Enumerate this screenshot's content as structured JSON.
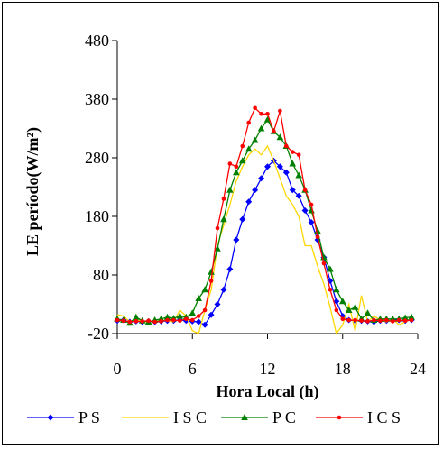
{
  "chart_data": {
    "type": "line",
    "xlabel": "Hora Local (h)",
    "ylabel": "LE período(W/m²)",
    "xlim": [
      0,
      24
    ],
    "ylim": [
      -20,
      480
    ],
    "xticks": [
      0,
      6,
      12,
      18,
      24
    ],
    "yticks": [
      -20,
      80,
      180,
      280,
      380,
      480
    ],
    "xtick_labels": [
      "0",
      "6",
      "12",
      "18",
      "24"
    ],
    "ytick_labels": [
      "-20",
      "80",
      "180",
      "280",
      "380",
      "480"
    ],
    "grid": false,
    "legend_position": "bottom",
    "series": [
      {
        "name": "P S",
        "color": "#0000ff",
        "marker": "diamond",
        "x": [
          0,
          0.5,
          1,
          1.5,
          2,
          2.5,
          3,
          3.5,
          4,
          4.5,
          5,
          5.5,
          6,
          6.5,
          7,
          7.5,
          8,
          8.5,
          9,
          9.5,
          10,
          10.5,
          11,
          11.5,
          12,
          12.5,
          13,
          13.5,
          14,
          14.5,
          15,
          15.5,
          16,
          16.5,
          17,
          17.5,
          18,
          18.5,
          19,
          19.5,
          20,
          20.5,
          21,
          21.5,
          22,
          22.5,
          23,
          23.5
        ],
        "values": [
          2,
          3,
          0,
          1,
          0,
          1,
          0,
          1,
          2,
          2,
          3,
          2,
          1,
          0,
          -5,
          12,
          30,
          55,
          90,
          140,
          175,
          205,
          225,
          245,
          265,
          275,
          265,
          255,
          225,
          215,
          190,
          170,
          140,
          110,
          70,
          35,
          10,
          3,
          2,
          2,
          1,
          0,
          2,
          2,
          3,
          3,
          2,
          3
        ]
      },
      {
        "name": "I S C",
        "color": "#ffd700",
        "marker": "none",
        "x": [
          0,
          0.5,
          1,
          1.5,
          2,
          2.5,
          3,
          3.5,
          4,
          4.5,
          5,
          5.5,
          6,
          6.5,
          7,
          7.5,
          8,
          8.5,
          9,
          9.5,
          10,
          10.5,
          11,
          11.5,
          12,
          12.5,
          13,
          13.5,
          14,
          14.5,
          15,
          15.5,
          16,
          16.5,
          17,
          17.5,
          18,
          18.5,
          19,
          19.5,
          20,
          20.5,
          21,
          21.5,
          22,
          22.5,
          23,
          23.5
        ],
        "values": [
          12,
          10,
          0,
          5,
          0,
          0,
          2,
          3,
          2,
          0,
          20,
          10,
          -15,
          -20,
          20,
          55,
          130,
          165,
          200,
          240,
          265,
          285,
          295,
          285,
          300,
          275,
          245,
          215,
          200,
          180,
          130,
          130,
          95,
          65,
          25,
          -20,
          -5,
          30,
          -15,
          45,
          0,
          10,
          3,
          0,
          5,
          -5,
          0,
          5
        ]
      },
      {
        "name": "P C",
        "color": "#008000",
        "marker": "triangle",
        "x": [
          0,
          0.5,
          1,
          1.5,
          2,
          2.5,
          3,
          3.5,
          4,
          4.5,
          5,
          5.5,
          6,
          6.5,
          7,
          7.5,
          8,
          8.5,
          9,
          9.5,
          10,
          10.5,
          11,
          11.5,
          12,
          12.5,
          13,
          13.5,
          14,
          14.5,
          15,
          15.5,
          16,
          16.5,
          17,
          17.5,
          18,
          18.5,
          19,
          19.5,
          20,
          20.5,
          21,
          21.5,
          22,
          22.5,
          23,
          23.5
        ],
        "values": [
          5,
          3,
          -2,
          8,
          2,
          0,
          3,
          5,
          8,
          6,
          10,
          8,
          15,
          40,
          55,
          85,
          125,
          175,
          225,
          255,
          275,
          295,
          310,
          330,
          345,
          325,
          315,
          300,
          270,
          250,
          225,
          190,
          155,
          110,
          90,
          55,
          35,
          20,
          25,
          5,
          15,
          3,
          5,
          5,
          5,
          5,
          7,
          8
        ]
      },
      {
        "name": "I C S",
        "color": "#ff0000",
        "marker": "circle",
        "x": [
          0,
          0.5,
          1,
          1.5,
          2,
          2.5,
          3,
          3.5,
          4,
          4.5,
          5,
          5.5,
          6,
          6.5,
          7,
          7.5,
          8,
          8.5,
          9,
          9.5,
          10,
          10.5,
          11,
          11.5,
          12,
          12.5,
          13,
          13.5,
          14,
          14.5,
          15,
          15.5,
          16,
          16.5,
          17,
          17.5,
          18,
          18.5,
          19,
          19.5,
          20,
          20.5,
          21,
          21.5,
          22,
          22.5,
          23,
          23.5
        ],
        "values": [
          3,
          2,
          0,
          1,
          1,
          2,
          0,
          1,
          3,
          3,
          2,
          5,
          3,
          10,
          20,
          70,
          160,
          210,
          270,
          265,
          300,
          340,
          365,
          355,
          355,
          325,
          360,
          300,
          290,
          285,
          225,
          200,
          145,
          100,
          55,
          20,
          5,
          3,
          3,
          2,
          1,
          3,
          2,
          3,
          1,
          3,
          2,
          3
        ]
      }
    ]
  }
}
